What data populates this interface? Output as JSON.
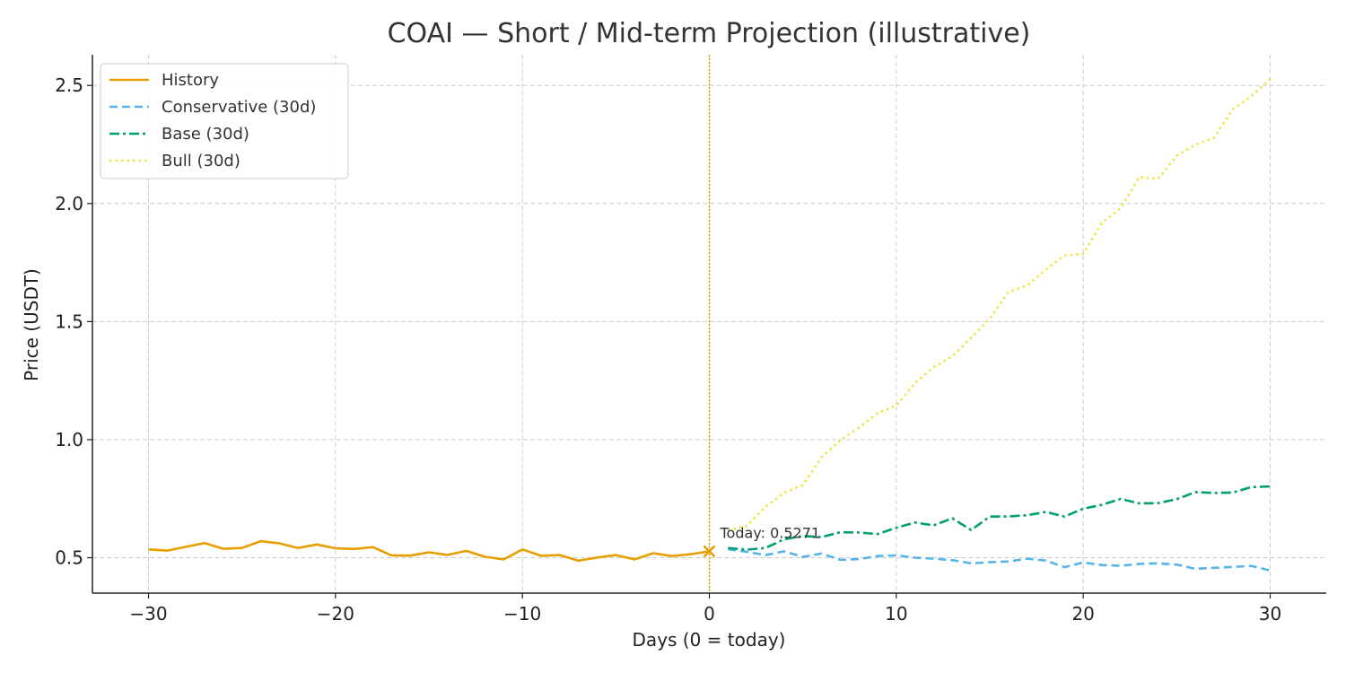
{
  "chart_data": {
    "type": "line",
    "title": "COAI — Short / Mid-term Projection (illustrative)",
    "xlabel": "Days (0 = today)",
    "ylabel": "Price (USDT)",
    "xlim": [
      -33,
      33
    ],
    "ylim": [
      0.35,
      2.63
    ],
    "xticks": [
      -30,
      -20,
      -10,
      0,
      10,
      20,
      30
    ],
    "yticks": [
      0.5,
      1.0,
      1.5,
      2.0,
      2.5
    ],
    "xtick_labels": [
      "−30",
      "−20",
      "−10",
      "0",
      "10",
      "20",
      "30"
    ],
    "ytick_labels": [
      "0.5",
      "1.0",
      "1.5",
      "2.0",
      "2.5"
    ],
    "grid": true,
    "legend_position": "top-left",
    "today_line_x": 0,
    "annotation": {
      "text": "Today: 0.5271",
      "x": 0,
      "y": 0.5271
    },
    "series": [
      {
        "name": "History",
        "color": "#E69F00",
        "style": "solid",
        "x": [
          -30,
          -29,
          -28,
          -27,
          -26,
          -25,
          -24,
          -23,
          -22,
          -21,
          -20,
          -19,
          -18,
          -17,
          -16,
          -15,
          -14,
          -13,
          -12,
          -11,
          -10,
          -9,
          -8,
          -7,
          -6,
          -5,
          -4,
          -3,
          -2,
          -1,
          0
        ],
        "values": [
          0.535,
          0.53,
          0.546,
          0.562,
          0.538,
          0.541,
          0.57,
          0.561,
          0.541,
          0.556,
          0.54,
          0.537,
          0.545,
          0.51,
          0.509,
          0.523,
          0.512,
          0.529,
          0.504,
          0.493,
          0.535,
          0.508,
          0.511,
          0.487,
          0.501,
          0.511,
          0.493,
          0.519,
          0.507,
          0.515,
          0.527
        ]
      },
      {
        "name": "Conservative (30d)",
        "color": "#56B4E9",
        "style": "dashed",
        "x": [
          1,
          2,
          3,
          4,
          5,
          6,
          7,
          8,
          9,
          10,
          11,
          12,
          13,
          14,
          15,
          16,
          17,
          18,
          19,
          20,
          21,
          22,
          23,
          24,
          25,
          26,
          27,
          28,
          29,
          30
        ],
        "values": [
          0.536,
          0.525,
          0.511,
          0.527,
          0.503,
          0.518,
          0.491,
          0.494,
          0.507,
          0.51,
          0.5,
          0.496,
          0.49,
          0.476,
          0.481,
          0.484,
          0.496,
          0.488,
          0.46,
          0.48,
          0.469,
          0.466,
          0.474,
          0.476,
          0.471,
          0.453,
          0.457,
          0.461,
          0.465,
          0.446
        ]
      },
      {
        "name": "Base (30d)",
        "color": "#009E73",
        "style": "dashdot",
        "x": [
          1,
          2,
          3,
          4,
          5,
          6,
          7,
          8,
          9,
          10,
          11,
          12,
          13,
          14,
          15,
          16,
          17,
          18,
          19,
          20,
          21,
          22,
          23,
          24,
          25,
          26,
          27,
          28,
          29,
          30
        ],
        "values": [
          0.541,
          0.534,
          0.541,
          0.578,
          0.592,
          0.587,
          0.608,
          0.607,
          0.6,
          0.627,
          0.649,
          0.637,
          0.667,
          0.617,
          0.674,
          0.675,
          0.68,
          0.694,
          0.674,
          0.708,
          0.724,
          0.749,
          0.73,
          0.731,
          0.748,
          0.778,
          0.774,
          0.776,
          0.799,
          0.802
        ]
      },
      {
        "name": "Bull (30d)",
        "color": "#F0E442",
        "style": "dotted",
        "x": [
          1,
          2,
          3,
          4,
          5,
          6,
          7,
          8,
          9,
          10,
          11,
          12,
          13,
          14,
          15,
          16,
          17,
          18,
          19,
          20,
          21,
          22,
          23,
          24,
          25,
          26,
          27,
          28,
          29,
          30
        ],
        "values": [
          0.615,
          0.635,
          0.716,
          0.775,
          0.808,
          0.925,
          0.997,
          1.051,
          1.113,
          1.145,
          1.24,
          1.307,
          1.353,
          1.432,
          1.512,
          1.625,
          1.653,
          1.72,
          1.78,
          1.787,
          1.918,
          1.98,
          2.112,
          2.104,
          2.202,
          2.249,
          2.278,
          2.399,
          2.455,
          2.527
        ]
      }
    ]
  }
}
